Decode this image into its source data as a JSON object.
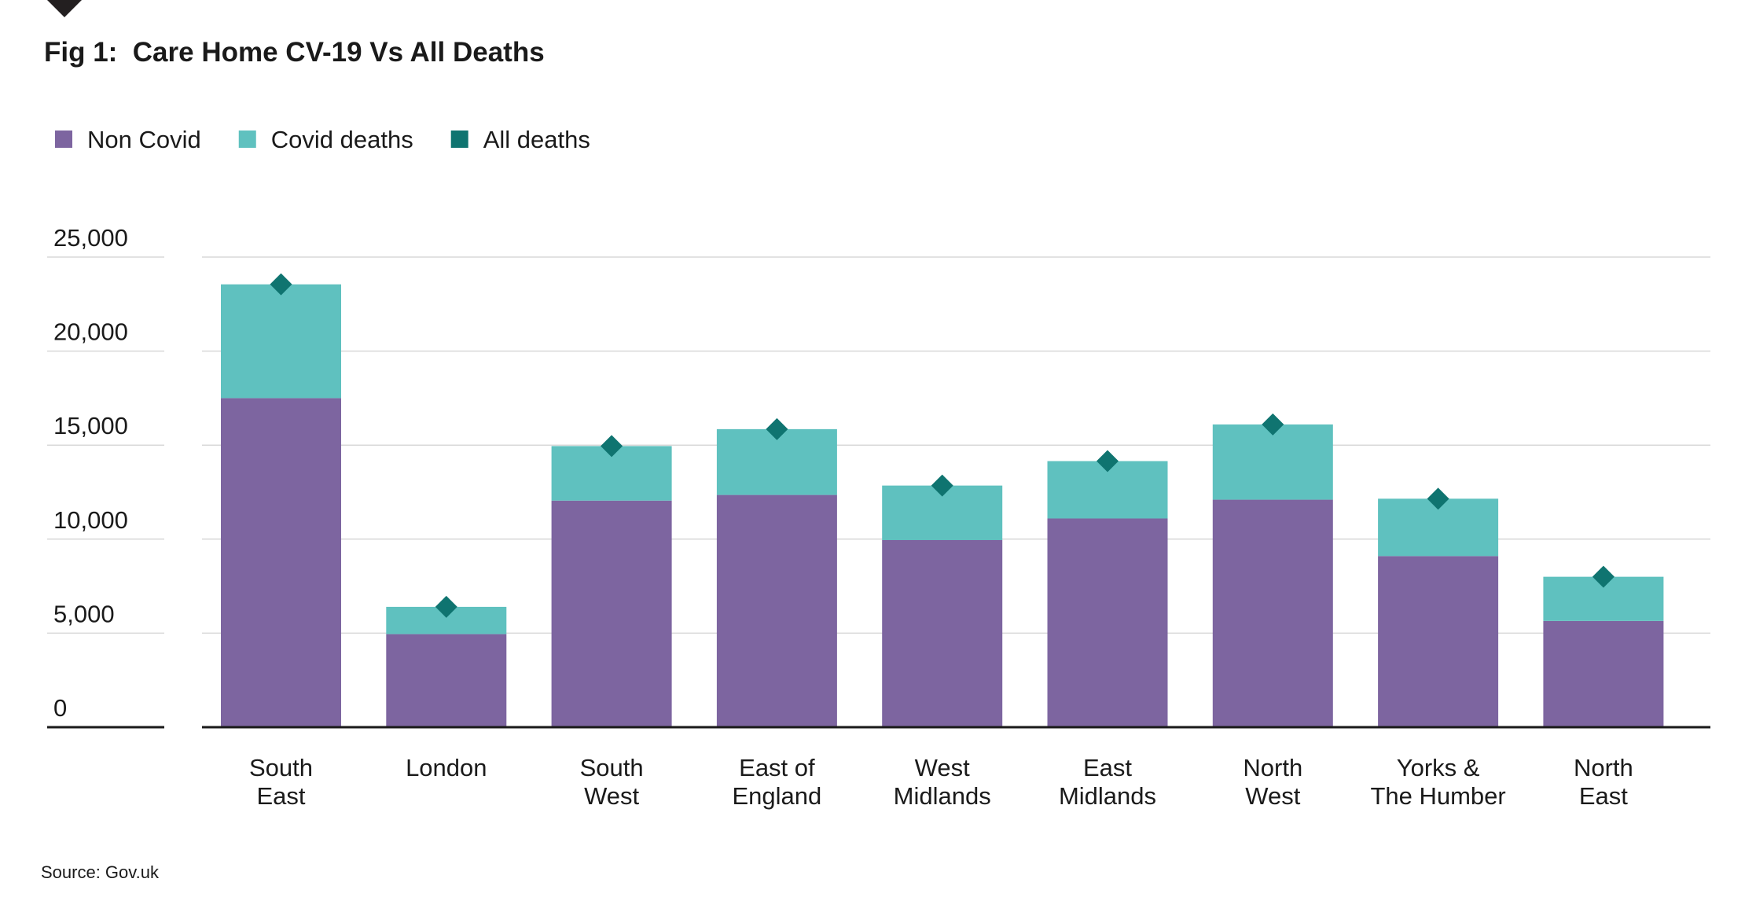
{
  "chart_data": {
    "type": "bar",
    "stacked": true,
    "title": "Fig 1:  Care Home CV-19 Vs All Deaths",
    "source": "Source: Gov.uk",
    "xlabel": "",
    "ylabel": "",
    "ylim": [
      0,
      25000
    ],
    "yticks": [
      0,
      5000,
      10000,
      15000,
      20000,
      25000
    ],
    "ytick_labels": [
      "0",
      "5,000",
      "10,000",
      "15,000",
      "20,000",
      "25,000"
    ],
    "grid": true,
    "legend_position": "top-left",
    "categories": [
      [
        "South",
        "East"
      ],
      [
        "London"
      ],
      [
        "South",
        "West"
      ],
      [
        "East of",
        "England"
      ],
      [
        "West",
        "Midlands"
      ],
      [
        "East",
        "Midlands"
      ],
      [
        "North",
        "West"
      ],
      [
        "Yorks &",
        "The Humber"
      ],
      [
        "North",
        "East"
      ]
    ],
    "series": [
      {
        "name": "Non Covid",
        "color": "#7d65a0",
        "kind": "bar",
        "values": [
          17500,
          4950,
          12050,
          12350,
          9950,
          11100,
          12100,
          9100,
          5650
        ]
      },
      {
        "name": "Covid deaths",
        "color": "#5fc1bf",
        "kind": "bar",
        "values": [
          6050,
          1450,
          2900,
          3500,
          2900,
          3050,
          4000,
          3050,
          2350
        ]
      },
      {
        "name": "All deaths",
        "color": "#0f7470",
        "kind": "marker",
        "values": [
          23550,
          6400,
          14950,
          15850,
          12850,
          14150,
          16100,
          12150,
          8000
        ]
      }
    ]
  }
}
